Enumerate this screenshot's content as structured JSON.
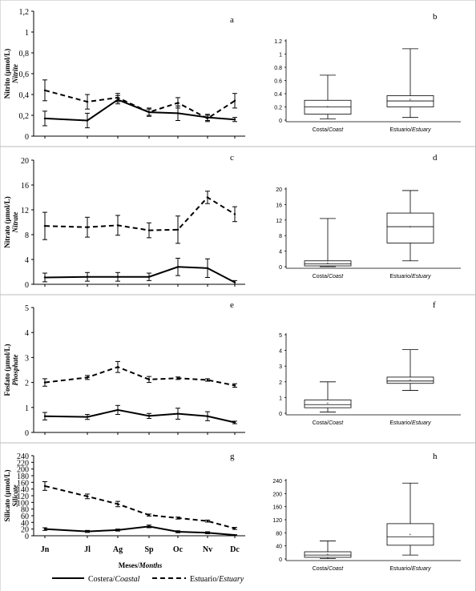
{
  "chart_data": [
    {
      "panel": "a",
      "type": "line",
      "ylabel": "Nitrito (µmol/L)",
      "ylabel_italic": "Nitrite",
      "yticks": [
        "0",
        "0,2",
        "0,4",
        "0,6",
        "0,8",
        "1",
        "1,2"
      ],
      "ylim": [
        0,
        1.2
      ],
      "categories": [
        "Jn",
        "Jl",
        "Ag",
        "Sp",
        "Oc",
        "Nv",
        "Dc"
      ],
      "series": [
        {
          "name": "Costera/Coastal",
          "values": [
            0.17,
            0.15,
            0.35,
            0.23,
            0.22,
            0.18,
            0.16
          ],
          "err": [
            0.07,
            0.07,
            0.04,
            0.03,
            0.07,
            0.03,
            0.02
          ]
        },
        {
          "name": "Estuario/Estuary",
          "values": [
            0.44,
            0.33,
            0.37,
            0.23,
            0.32,
            0.17,
            0.34
          ],
          "err": [
            0.1,
            0.07,
            0.04,
            0.04,
            0.05,
            0.03,
            0.07
          ]
        }
      ]
    },
    {
      "panel": "b",
      "type": "box",
      "yticks": [
        "0",
        "0.2",
        "0.4",
        "0.6",
        "0.8",
        "1",
        "1.2"
      ],
      "ylim": [
        0,
        1.2
      ],
      "categories": [
        "Costa/Coast",
        "Estuario/Estuary"
      ],
      "boxes": [
        {
          "min": 0.02,
          "q1": 0.09,
          "median": 0.2,
          "q3": 0.3,
          "max": 0.68,
          "mean": 0.2
        },
        {
          "min": 0.04,
          "q1": 0.2,
          "median": 0.29,
          "q3": 0.37,
          "max": 1.08,
          "mean": 0.31
        }
      ]
    },
    {
      "panel": "c",
      "type": "line",
      "ylabel": "Nitrato (µmol/L)",
      "ylabel_italic": "Nitrate",
      "yticks": [
        "0",
        "4",
        "8",
        "12",
        "16",
        "20"
      ],
      "ylim": [
        0,
        20
      ],
      "categories": [
        "Jn",
        "Jl",
        "Ag",
        "Sp",
        "Oc",
        "Nv",
        "Dc"
      ],
      "series": [
        {
          "name": "Costera/Coastal",
          "values": [
            1.1,
            1.2,
            1.2,
            1.2,
            2.8,
            2.6,
            0.3
          ],
          "err": [
            0.7,
            0.7,
            0.7,
            0.6,
            1.4,
            1.5,
            0.3
          ]
        },
        {
          "name": "Estuario/Estuary",
          "values": [
            9.4,
            9.2,
            9.5,
            8.7,
            8.8,
            14.0,
            11.3
          ],
          "err": [
            2.2,
            1.6,
            1.6,
            1.2,
            2.2,
            1.0,
            1.2
          ]
        }
      ]
    },
    {
      "panel": "d",
      "type": "box",
      "yticks": [
        "0",
        "4",
        "8",
        "12",
        "16",
        "20"
      ],
      "ylim": [
        0,
        20
      ],
      "categories": [
        "Costa/Coast",
        "Estuario/Estuary"
      ],
      "boxes": [
        {
          "min": 0,
          "q1": 0.2,
          "median": 0.7,
          "q3": 1.5,
          "max": 12.4,
          "mean": 0.9
        },
        {
          "min": 1.5,
          "q1": 6.1,
          "median": 10.3,
          "q3": 13.8,
          "max": 19.6,
          "mean": 10.2
        }
      ]
    },
    {
      "panel": "e",
      "type": "line",
      "ylabel": "Fosfato (µmol/L)",
      "ylabel_italic": "Phosphate",
      "yticks": [
        "0",
        "1",
        "2",
        "3",
        "4",
        "5"
      ],
      "ylim": [
        0,
        5
      ],
      "categories": [
        "Jn",
        "Jl",
        "Ag",
        "Sp",
        "Oc",
        "Nv",
        "Dc"
      ],
      "series": [
        {
          "name": "Costera/Coastal",
          "values": [
            0.65,
            0.62,
            0.9,
            0.66,
            0.75,
            0.65,
            0.4
          ],
          "err": [
            0.15,
            0.1,
            0.18,
            0.1,
            0.22,
            0.18,
            0.05
          ]
        },
        {
          "name": "Estuario/Estuary",
          "values": [
            2.0,
            2.2,
            2.62,
            2.12,
            2.17,
            2.1,
            1.88
          ],
          "err": [
            0.15,
            0.08,
            0.22,
            0.12,
            0.05,
            0.05,
            0.07
          ]
        }
      ]
    },
    {
      "panel": "f",
      "type": "box",
      "yticks": [
        "0",
        "1",
        "2",
        "3",
        "4",
        "5"
      ],
      "ylim": [
        0,
        5
      ],
      "categories": [
        "Costa/Coast",
        "Estuario/Estuary"
      ],
      "boxes": [
        {
          "min": 0.08,
          "q1": 0.35,
          "median": 0.55,
          "q3": 0.85,
          "max": 2.0,
          "mean": 0.62
        },
        {
          "min": 1.45,
          "q1": 1.9,
          "median": 2.05,
          "q3": 2.3,
          "max": 4.05,
          "mean": 2.1
        }
      ]
    },
    {
      "panel": "g",
      "type": "line",
      "ylabel": "Silicato (µmol/L)",
      "ylabel_italic": "Silicate",
      "yticks": [
        "0",
        "20",
        "40",
        "60",
        "80",
        "100",
        "120",
        "140",
        "160",
        "180",
        "200",
        "220",
        "240"
      ],
      "ylim": [
        0,
        240
      ],
      "categories": [
        "Jn",
        "Jl",
        "Ag",
        "Sp",
        "Oc",
        "Nv",
        "Dc"
      ],
      "xlabel": "Meses/",
      "xlabel_italic": "Months",
      "series": [
        {
          "name": "Costera/Coastal",
          "values": [
            20,
            13,
            17,
            28,
            12,
            9,
            2
          ],
          "err": [
            4,
            3,
            3,
            4,
            3,
            3,
            1
          ]
        },
        {
          "name": "Estuario/Estuary",
          "values": [
            149,
            118,
            95,
            62,
            53,
            44,
            22
          ],
          "err": [
            13,
            7,
            8,
            3,
            3,
            3,
            3
          ]
        }
      ]
    },
    {
      "panel": "h",
      "type": "box",
      "yticks": [
        "0",
        "40",
        "80",
        "120",
        "160",
        "200",
        "240"
      ],
      "ylim": [
        0,
        240
      ],
      "categories": [
        "Costa/Coast",
        "Estuario/Estuary"
      ],
      "boxes": [
        {
          "min": 1,
          "q1": 5,
          "median": 12,
          "q3": 22,
          "max": 55,
          "mean": 14
        },
        {
          "min": 12,
          "q1": 42,
          "median": 68,
          "q3": 108,
          "max": 232,
          "mean": 75
        }
      ]
    }
  ],
  "legend": [
    {
      "name": "Costera/",
      "italic": "Coastal",
      "style": "solid"
    },
    {
      "name": "Estuario/",
      "italic": "Estuary",
      "style": "dashed"
    }
  ]
}
